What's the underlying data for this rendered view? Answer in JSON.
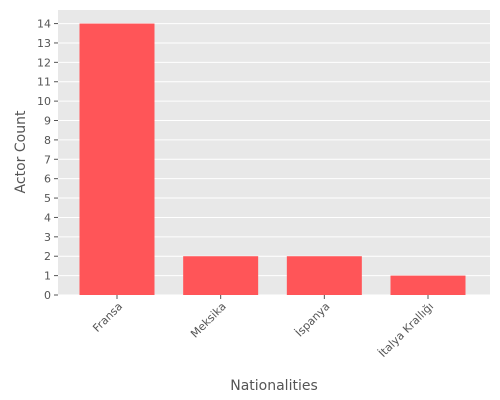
{
  "chart_data": {
    "type": "bar",
    "categories": [
      "Fransa",
      "Meksika",
      "İspanya",
      "İtalya Krallığı"
    ],
    "values": [
      14,
      2,
      2,
      1
    ],
    "title": "",
    "xlabel": "Nationalities",
    "ylabel": "Actor Count",
    "ylim": [
      0,
      14.7
    ],
    "yticks": [
      0,
      1,
      2,
      3,
      4,
      5,
      6,
      7,
      8,
      9,
      10,
      11,
      12,
      13,
      14
    ],
    "grid": true,
    "bar_color": "#FF5558",
    "background_color": "#E8E8E8",
    "grid_color": "#FFFFFF"
  }
}
